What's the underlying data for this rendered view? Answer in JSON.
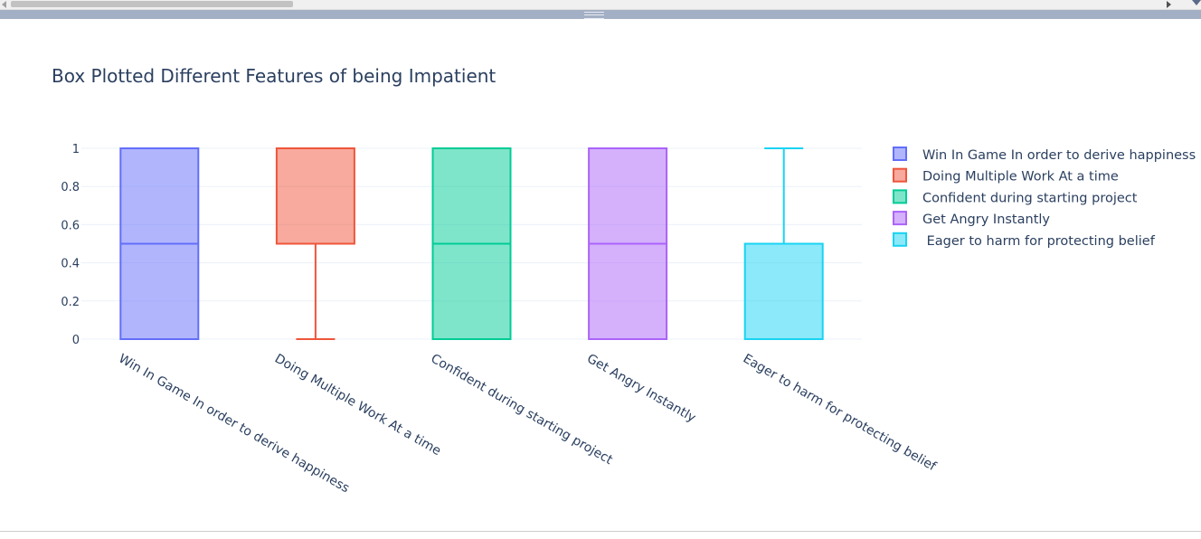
{
  "chart_data": {
    "type": "box",
    "title": "Box Plotted Different Features of being Impatient",
    "xlabel": "",
    "ylabel": "",
    "ylim": [
      0,
      1
    ],
    "yticks": [
      "0",
      "0.2",
      "0.4",
      "0.6",
      "0.8",
      "1"
    ],
    "grid": true,
    "legend_position": "right",
    "series": [
      {
        "name": "Win In Game In order to derive happiness",
        "min": 0,
        "q1": 0,
        "median": 0.5,
        "q3": 1,
        "max": 1,
        "color": "#636efa"
      },
      {
        "name": "Doing Multiple Work At a time",
        "min": 0,
        "q1": 0.5,
        "median": 1,
        "q3": 1,
        "max": 1,
        "color": "#ef553b"
      },
      {
        "name": "Confident during starting project",
        "min": 0,
        "q1": 0,
        "median": 0.5,
        "q3": 1,
        "max": 1,
        "color": "#00cc96"
      },
      {
        "name": "Get Angry Instantly",
        "min": 0,
        "q1": 0,
        "median": 0.5,
        "q3": 1,
        "max": 1,
        "color": "#ab63fa"
      },
      {
        "name": " Eager to harm for protecting belief",
        "min": 0,
        "q1": 0,
        "median": 0,
        "q3": 0.5,
        "max": 1,
        "color": "#19d3f3"
      }
    ]
  }
}
